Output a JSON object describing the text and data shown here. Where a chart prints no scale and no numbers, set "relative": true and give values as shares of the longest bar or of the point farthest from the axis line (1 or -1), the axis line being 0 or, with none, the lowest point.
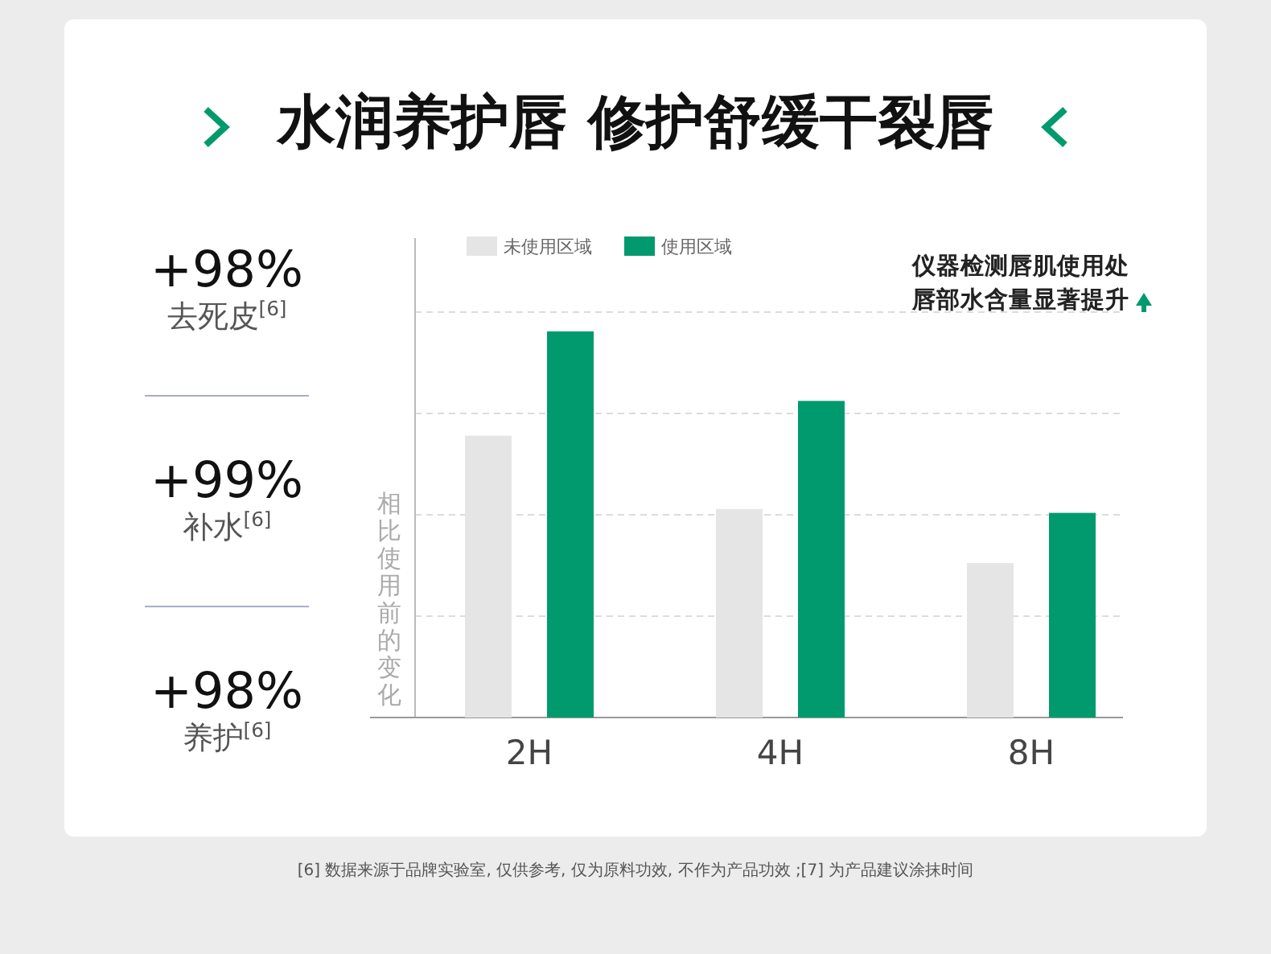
{
  "chart_data": [
    {
      "type": "other",
      "annotations": [
        "+98%",
        "去死皮$^{[6]}$",
        "+99%",
        "补水$^{[6]}$",
        "+98%",
        "养护$^{[6]}$"
      ]
    },
    {
      "type": "bar",
      "title": "水润养护唇 修护舒缓干裂唇",
      "ylabel": "相比使用前的变化",
      "categories": [
        "2H",
        "4H",
        "8H"
      ],
      "relative": true,
      "grid": "y",
      "legend": "top left",
      "series": [
        {
          "name": "未使用区域",
          "color": "#e5e5e5",
          "values": [
            0.73,
            0.54,
            0.4
          ]
        },
        {
          "name": "使用区域",
          "color": "#009a6e",
          "values": [
            1,
            0.82,
            0.53
          ]
        }
      ],
      "annotations": [
        "仪器检测唇肌使用处",
        "唇部水含量显著提升",
        "[6] 数据来源于品牌实验室, 仅供参考, 仅为原料功效, 不作为产品功效 ;[7] 为产品建议涂抹时间"
      ]
    }
  ]
}
